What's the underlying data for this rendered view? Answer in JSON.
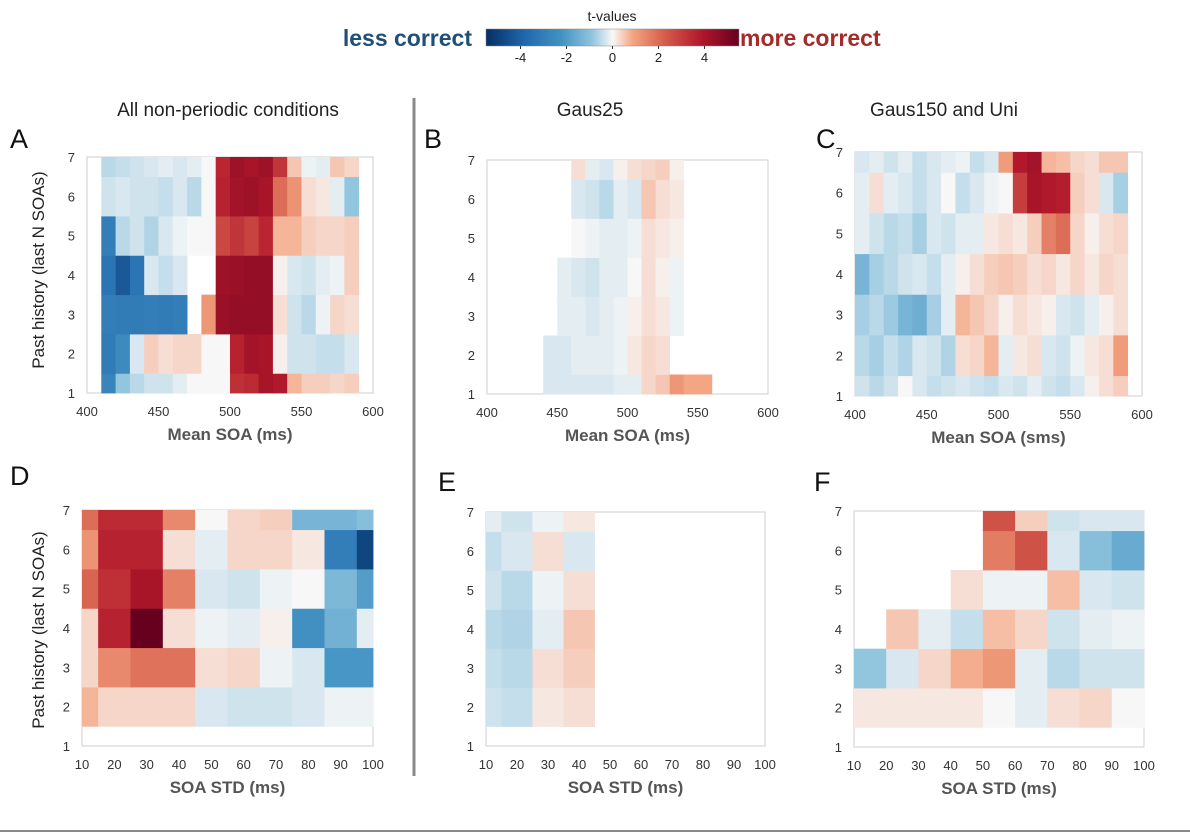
{
  "colorbar": {
    "title": "t-values",
    "left_label": "less correct",
    "right_label": "more correct",
    "left_color": "#1f4e79",
    "right_color": "#a52a2a",
    "range": [
      -5.5,
      5.5
    ],
    "ticks": [
      "-4",
      "-2",
      "0",
      "2",
      "4"
    ],
    "tick_values": [
      -4,
      -2,
      0,
      2,
      4
    ]
  },
  "chart_data": [
    {
      "type": "heatmap",
      "panel": "A",
      "title": "All non-periodic conditions",
      "xlabel": "Mean SOA (ms)",
      "ylabel": "Past history (last N SOAs)",
      "xlim": [
        400,
        600
      ],
      "ylim": [
        1,
        7
      ],
      "xticks": [
        "400",
        "450",
        "500",
        "550",
        "600"
      ],
      "xtick_values": [
        400,
        450,
        500,
        550,
        600
      ],
      "yticks": [
        "1",
        "2",
        "3",
        "4",
        "5",
        "6",
        "7"
      ],
      "ytick_values": [
        1,
        2,
        3,
        4,
        5,
        6,
        7
      ],
      "x_bins": [
        415,
        425,
        435,
        445,
        455,
        465,
        475,
        485,
        495,
        505,
        515,
        525,
        535,
        545,
        555,
        565,
        575,
        585
      ],
      "y_bins": [
        1,
        2,
        3,
        4,
        5,
        6,
        7
      ],
      "values": [
        [
          -3,
          -1,
          -0.6,
          -0.4,
          -0.4,
          -0.2,
          0,
          0,
          0,
          3.5,
          3.6,
          4.2,
          4,
          0.8,
          0.5,
          0.5,
          0.4,
          0.5
        ],
        [
          -3.3,
          -2.8,
          -0.3,
          0.5,
          0.3,
          0.4,
          0.4,
          0,
          0,
          3.8,
          4.3,
          4.2,
          0.1,
          -0.4,
          -0.4,
          -0.5,
          -0.5,
          -0.3
        ],
        [
          -3.2,
          -3.3,
          -3.3,
          -3.2,
          -3.3,
          -3.2,
          null,
          1.3,
          4.5,
          4.6,
          4.6,
          4.6,
          0.3,
          -0.4,
          -0.6,
          -0.1,
          0.4,
          0.3
        ],
        [
          -3.5,
          -4.4,
          -3.5,
          -0.3,
          -0.5,
          -0.3,
          null,
          null,
          4.4,
          4.5,
          4.6,
          4.6,
          0.1,
          -0.3,
          -0.4,
          -0.2,
          -0.1,
          0.5
        ],
        [
          -3.2,
          -0.6,
          -0.4,
          -0.7,
          -0.3,
          -0.1,
          0,
          0,
          3,
          3.4,
          3.1,
          3.7,
          0.8,
          0.8,
          0.5,
          0.4,
          0.4,
          0.5
        ],
        [
          -0.4,
          -0.3,
          -0.4,
          -0.4,
          -0.5,
          -0.3,
          -0.6,
          0,
          3.8,
          4.3,
          4.4,
          4.2,
          2.2,
          1.4,
          0.3,
          0.2,
          -0.2,
          -1
        ],
        [
          -0.6,
          -0.5,
          -0.4,
          -0.3,
          -0.2,
          -0.3,
          -0.2,
          0,
          3.7,
          4.4,
          4.2,
          4.4,
          3.4,
          0.6,
          -0.1,
          -0.2,
          0.6,
          0.4
        ]
      ]
    },
    {
      "type": "heatmap",
      "panel": "B",
      "title": "Gaus25",
      "xlabel": "Mean SOA (ms)",
      "ylabel": "",
      "xlim": [
        400,
        600
      ],
      "ylim": [
        1,
        7
      ],
      "xticks": [
        "400",
        "450",
        "500",
        "550",
        "600"
      ],
      "xtick_values": [
        400,
        450,
        500,
        550,
        600
      ],
      "yticks": [
        "1",
        "2",
        "3",
        "4",
        "5",
        "6",
        "7"
      ],
      "ytick_values": [
        1,
        2,
        3,
        4,
        5,
        6,
        7
      ],
      "x_bins": [
        445,
        455,
        465,
        475,
        485,
        495,
        505,
        515,
        525,
        535,
        545,
        555
      ],
      "y_bins": [
        1,
        2,
        3,
        4,
        5,
        6,
        7
      ],
      "values": [
        [
          -0.3,
          -0.3,
          -0.3,
          -0.3,
          -0.3,
          -0.2,
          -0.2,
          0.4,
          0.6,
          1.3,
          1,
          1
        ],
        [
          -0.3,
          -0.3,
          -0.2,
          -0.2,
          -0.2,
          -0.1,
          0.2,
          0.4,
          0.3,
          null,
          null,
          null
        ],
        [
          null,
          -0.2,
          -0.2,
          -0.3,
          -0.2,
          -0.1,
          0.1,
          0.3,
          0.2,
          -0.1,
          null,
          null
        ],
        [
          null,
          -0.2,
          -0.3,
          -0.4,
          -0.2,
          -0.2,
          0,
          0.3,
          0.1,
          -0.1,
          null,
          null
        ],
        [
          null,
          null,
          0,
          -0.1,
          -0.2,
          -0.2,
          -0.1,
          0.3,
          0.2,
          0.1,
          null,
          null
        ],
        [
          null,
          null,
          -0.3,
          -0.4,
          -0.6,
          -0.2,
          -0.3,
          0.6,
          0.3,
          0.2,
          null,
          null
        ],
        [
          null,
          null,
          0.3,
          -0.2,
          -0.3,
          0.1,
          0.3,
          0.4,
          0.5,
          0.1,
          null,
          null
        ]
      ]
    },
    {
      "type": "heatmap",
      "panel": "C",
      "title": "Gaus150 and Uni",
      "xlabel": "Mean SOA (sms)",
      "ylabel": "",
      "xlim": [
        400,
        600
      ],
      "ylim": [
        1,
        7
      ],
      "xticks": [
        "400",
        "450",
        "500",
        "550",
        "600"
      ],
      "xtick_values": [
        400,
        450,
        500,
        550,
        600
      ],
      "yticks": [
        "1",
        "2",
        "3",
        "4",
        "5",
        "6",
        "7"
      ],
      "ytick_values": [
        1,
        2,
        3,
        4,
        5,
        6,
        7
      ],
      "x_bins": [
        405,
        415,
        425,
        435,
        445,
        455,
        465,
        475,
        485,
        495,
        505,
        515,
        525,
        535,
        545,
        555,
        565,
        575,
        585
      ],
      "y_bins": [
        1,
        2,
        3,
        4,
        5,
        6,
        7
      ],
      "values": [
        [
          -0.4,
          -0.6,
          -0.4,
          0,
          -0.3,
          -0.5,
          -0.4,
          -0.3,
          -0.4,
          -0.5,
          -0.3,
          -0.4,
          -0.2,
          -0.4,
          -0.5,
          -0.3,
          0.1,
          0.3,
          0.5
        ],
        [
          -0.6,
          -0.8,
          -0.5,
          -0.7,
          -0.3,
          -0.4,
          -0.7,
          0.3,
          0.4,
          0.8,
          -0.2,
          0.2,
          0.3,
          -0.3,
          -0.4,
          -0.1,
          0.2,
          0.3,
          1.2
        ],
        [
          -0.8,
          -0.6,
          -0.9,
          -1.5,
          -1.7,
          -0.8,
          -0.2,
          0.8,
          0.6,
          0.4,
          0.1,
          0.3,
          0.2,
          0.1,
          -0.3,
          -0.4,
          -0.2,
          0.1,
          0.3
        ],
        [
          -1.5,
          -0.8,
          -0.6,
          -0.4,
          -0.3,
          -0.5,
          -0.2,
          0.1,
          0.3,
          0.5,
          0.6,
          0.5,
          0.3,
          0.4,
          0.2,
          0.4,
          0.2,
          0.4,
          0.3
        ],
        [
          -0.2,
          -0.4,
          -0.6,
          -0.5,
          -0.8,
          -0.3,
          -0.4,
          -0.2,
          -0.2,
          0.2,
          0.3,
          0.2,
          0.5,
          1.8,
          2.2,
          0.4,
          0.1,
          0.3,
          0.4
        ],
        [
          -0.2,
          0.3,
          -0.2,
          -0.3,
          -0.5,
          -0.3,
          0,
          -0.5,
          -0.3,
          -0.1,
          0,
          3.2,
          4.2,
          4,
          3.9,
          0.5,
          0.3,
          -0.3,
          -0.8
        ],
        [
          -0.3,
          -0.2,
          -0.4,
          -0.2,
          -0.5,
          -0.3,
          -0.2,
          -0.1,
          -0.5,
          -0.3,
          1.2,
          4,
          4.3,
          0.8,
          0.7,
          0.4,
          0.3,
          0.6,
          0.6
        ]
      ]
    },
    {
      "type": "heatmap",
      "panel": "D",
      "title": "",
      "xlabel": "SOA  STD (ms)",
      "ylabel": "Past history (last N SOAs)",
      "xlim": [
        10,
        100
      ],
      "ylim": [
        1,
        7
      ],
      "xticks": [
        "10",
        "20",
        "30",
        "40",
        "50",
        "60",
        "70",
        "80",
        "90",
        "100"
      ],
      "xtick_values": [
        10,
        20,
        30,
        40,
        50,
        60,
        70,
        80,
        90,
        100
      ],
      "yticks": [
        "1",
        "2",
        "3",
        "4",
        "5",
        "6",
        "7"
      ],
      "ytick_values": [
        1,
        2,
        3,
        4,
        5,
        6,
        7
      ],
      "x_bins": [
        10,
        20,
        30,
        40,
        50,
        60,
        70,
        80,
        90,
        100
      ],
      "y_bins": [
        2,
        3,
        4,
        5,
        6,
        7
      ],
      "values": [
        [
          0.8,
          0.4,
          0.4,
          0.4,
          -0.3,
          -0.4,
          -0.4,
          -0.3,
          -0.1,
          -0.1
        ],
        [
          0.4,
          1.6,
          2.1,
          2.1,
          0.3,
          0.4,
          -0.1,
          -0.3,
          -2.4,
          -2.4
        ],
        [
          0.4,
          3.8,
          5.5,
          0.3,
          -0.1,
          -0.2,
          0.1,
          -2.6,
          -1.6,
          -0.2
        ],
        [
          2.4,
          3.5,
          4.2,
          1.8,
          -0.3,
          -0.4,
          -0.1,
          0,
          -1.4,
          -2.2
        ],
        [
          1.4,
          3.8,
          3.8,
          0.3,
          -0.2,
          0.4,
          0.4,
          0.2,
          -3.2,
          -4.9
        ],
        [
          2.2,
          3.6,
          3.6,
          1.6,
          0,
          0.4,
          0.5,
          -1.5,
          -1.5,
          -1.2
        ]
      ]
    },
    {
      "type": "heatmap",
      "panel": "E",
      "title": "",
      "xlabel": "SOA  STD (ms)",
      "ylabel": "",
      "xlim": [
        10,
        100
      ],
      "ylim": [
        1,
        7
      ],
      "xticks": [
        "10",
        "20",
        "30",
        "40",
        "50",
        "60",
        "70",
        "80",
        "90",
        "100"
      ],
      "xtick_values": [
        10,
        20,
        30,
        40,
        50,
        60,
        70,
        80,
        90,
        100
      ],
      "yticks": [
        "1",
        "2",
        "3",
        "4",
        "5",
        "6",
        "7"
      ],
      "ytick_values": [
        1,
        2,
        3,
        4,
        5,
        6,
        7
      ],
      "x_bins": [
        10,
        20,
        30,
        40
      ],
      "y_bins": [
        2,
        3,
        4,
        5,
        6,
        7
      ],
      "values": [
        [
          -0.4,
          -0.5,
          0.2,
          0.3
        ],
        [
          -0.5,
          -0.6,
          0.3,
          0.5
        ],
        [
          -0.6,
          -0.7,
          -0.2,
          0.6
        ],
        [
          -0.4,
          -0.6,
          -0.1,
          0.3
        ],
        [
          -0.5,
          -0.3,
          0.3,
          -0.3
        ],
        [
          -0.2,
          -0.4,
          -0.1,
          0.2
        ]
      ]
    },
    {
      "type": "heatmap",
      "panel": "F",
      "title": "",
      "xlabel": "SOA  STD (ms)",
      "ylabel": "",
      "xlim": [
        10,
        100
      ],
      "ylim": [
        1,
        7
      ],
      "xticks": [
        "10",
        "20",
        "30",
        "40",
        "50",
        "60",
        "70",
        "80",
        "90",
        "100"
      ],
      "xtick_values": [
        10,
        20,
        30,
        40,
        50,
        60,
        70,
        80,
        90,
        100
      ],
      "yticks": [
        "1",
        "2",
        "3",
        "4",
        "5",
        "6",
        "7"
      ],
      "ytick_values": [
        1,
        2,
        3,
        4,
        5,
        6,
        7
      ],
      "x_bins": [
        5,
        15,
        25,
        35,
        45,
        55,
        65,
        75,
        85,
        95
      ],
      "y_bins": [
        2,
        3,
        4,
        5,
        6,
        7
      ],
      "values": [
        [
          -0.3,
          0.2,
          0.2,
          0.2,
          0.2,
          0,
          -0.2,
          0.3,
          0.4,
          0
        ],
        [
          null,
          -1,
          -0.3,
          0.4,
          0.9,
          1.3,
          -0.2,
          -0.6,
          -0.4,
          -0.4
        ],
        [
          null,
          null,
          0.6,
          -0.2,
          -0.5,
          0.7,
          0.4,
          -0.4,
          -0.2,
          -0.1
        ],
        [
          null,
          null,
          null,
          null,
          0.3,
          -0.1,
          -0.1,
          0.7,
          -0.3,
          -0.4
        ],
        [
          null,
          null,
          null,
          null,
          null,
          1.9,
          2.8,
          -0.3,
          -1.2,
          -1.8
        ],
        [
          null,
          null,
          null,
          null,
          null,
          2.8,
          0.5,
          -0.4,
          -0.3,
          -0.3
        ]
      ]
    }
  ]
}
